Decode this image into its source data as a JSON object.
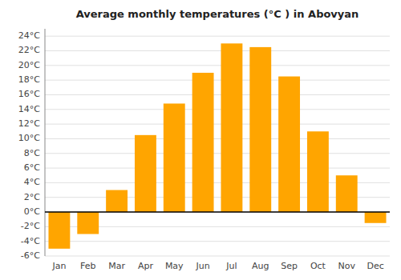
{
  "chart_data": {
    "type": "bar",
    "title": "Average monthly temperatures (°C ) in Abovyan",
    "categories": [
      "Jan",
      "Feb",
      "Mar",
      "Apr",
      "May",
      "Jun",
      "Jul",
      "Aug",
      "Sep",
      "Oct",
      "Nov",
      "Dec"
    ],
    "values": [
      -5.0,
      -3.0,
      3.0,
      10.5,
      14.8,
      19.0,
      23.0,
      22.5,
      18.5,
      11.0,
      5.0,
      -1.5
    ],
    "color": "#FFA500",
    "ylim": [
      -6,
      25
    ],
    "yticks": [
      {
        "value": -6,
        "label": "-6°C"
      },
      {
        "value": -4,
        "label": "-4°C"
      },
      {
        "value": -2,
        "label": "-2°C"
      },
      {
        "value": 0,
        "label": "0°C"
      },
      {
        "value": 2,
        "label": "2°C"
      },
      {
        "value": 4,
        "label": "4°C"
      },
      {
        "value": 6,
        "label": "6°C"
      },
      {
        "value": 8,
        "label": "8°C"
      },
      {
        "value": 10,
        "label": "10°C"
      },
      {
        "value": 12,
        "label": "12°C"
      },
      {
        "value": 14,
        "label": "14°C"
      },
      {
        "value": 16,
        "label": "16°C"
      },
      {
        "value": 18,
        "label": "18°C"
      },
      {
        "value": 20,
        "label": "20°C"
      },
      {
        "value": 22,
        "label": "22°C"
      },
      {
        "value": 24,
        "label": "24°C"
      }
    ],
    "grid": true
  }
}
